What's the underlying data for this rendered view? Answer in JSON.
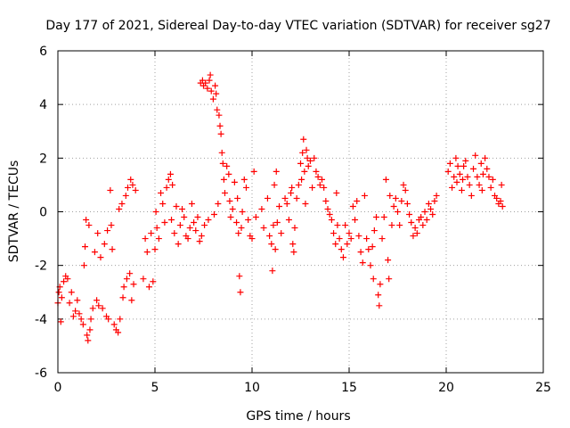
{
  "chart_data": {
    "type": "scatter",
    "title": "Day 177 of 2021, Sidereal Day-to-day VTEC variation (SDTVAR) for receiver sg27",
    "xlabel": "GPS time / hours",
    "ylabel": "SDTVAR / TECUs",
    "xlim": [
      0,
      25
    ],
    "ylim": [
      -6,
      6
    ],
    "xticks": [
      0,
      5,
      10,
      15,
      20,
      25
    ],
    "yticks": [
      -6,
      -4,
      -2,
      0,
      2,
      4,
      6
    ],
    "grid": true,
    "marker": "plus",
    "color": "#ff0000",
    "series": [
      {
        "name": "SDTVAR",
        "points": [
          [
            0.0,
            -3.4
          ],
          [
            0.05,
            -3.0
          ],
          [
            0.1,
            -2.8
          ],
          [
            0.15,
            -4.1
          ],
          [
            0.2,
            -3.2
          ],
          [
            0.3,
            -2.6
          ],
          [
            0.4,
            -2.4
          ],
          [
            0.5,
            -2.5
          ],
          [
            0.6,
            -3.4
          ],
          [
            0.7,
            -3.0
          ],
          [
            0.8,
            -3.9
          ],
          [
            0.9,
            -3.7
          ],
          [
            1.0,
            -3.3
          ],
          [
            1.1,
            -3.8
          ],
          [
            1.2,
            -4.0
          ],
          [
            1.3,
            -4.2
          ],
          [
            1.35,
            -2.0
          ],
          [
            1.4,
            -1.3
          ],
          [
            1.45,
            -0.3
          ],
          [
            1.5,
            -4.6
          ],
          [
            1.55,
            -4.8
          ],
          [
            1.6,
            -0.5
          ],
          [
            1.65,
            -4.4
          ],
          [
            1.7,
            -4.0
          ],
          [
            1.8,
            -3.6
          ],
          [
            1.9,
            -1.5
          ],
          [
            2.0,
            -3.3
          ],
          [
            2.05,
            -0.8
          ],
          [
            2.1,
            -3.5
          ],
          [
            2.2,
            -1.7
          ],
          [
            2.3,
            -3.6
          ],
          [
            2.4,
            -1.2
          ],
          [
            2.5,
            -3.9
          ],
          [
            2.55,
            -0.7
          ],
          [
            2.6,
            -4.0
          ],
          [
            2.7,
            0.8
          ],
          [
            2.75,
            -0.5
          ],
          [
            2.8,
            -1.4
          ],
          [
            2.9,
            -4.2
          ],
          [
            3.0,
            -4.4
          ],
          [
            3.1,
            -4.5
          ],
          [
            3.15,
            0.1
          ],
          [
            3.2,
            -4.0
          ],
          [
            3.3,
            0.3
          ],
          [
            3.35,
            -3.2
          ],
          [
            3.4,
            -2.8
          ],
          [
            3.5,
            0.6
          ],
          [
            3.55,
            -2.5
          ],
          [
            3.6,
            0.9
          ],
          [
            3.7,
            -2.3
          ],
          [
            3.75,
            1.2
          ],
          [
            3.8,
            -3.3
          ],
          [
            3.85,
            1.0
          ],
          [
            3.9,
            -2.7
          ],
          [
            4.0,
            0.8
          ],
          [
            4.4,
            -2.5
          ],
          [
            4.5,
            -1.0
          ],
          [
            4.6,
            -1.5
          ],
          [
            4.7,
            -2.8
          ],
          [
            4.8,
            -0.8
          ],
          [
            4.9,
            -2.6
          ],
          [
            5.0,
            -1.4
          ],
          [
            5.05,
            0.0
          ],
          [
            5.1,
            -0.6
          ],
          [
            5.2,
            -1.0
          ],
          [
            5.3,
            0.7
          ],
          [
            5.4,
            0.3
          ],
          [
            5.5,
            -0.4
          ],
          [
            5.6,
            0.9
          ],
          [
            5.7,
            1.2
          ],
          [
            5.8,
            1.4
          ],
          [
            5.85,
            -0.3
          ],
          [
            5.9,
            1.0
          ],
          [
            6.0,
            -0.8
          ],
          [
            6.1,
            0.2
          ],
          [
            6.2,
            -1.2
          ],
          [
            6.3,
            -0.5
          ],
          [
            6.4,
            0.1
          ],
          [
            6.5,
            -0.2
          ],
          [
            6.6,
            -0.9
          ],
          [
            6.7,
            -1.0
          ],
          [
            6.8,
            -0.6
          ],
          [
            6.9,
            0.3
          ],
          [
            7.0,
            -0.4
          ],
          [
            7.1,
            -0.7
          ],
          [
            7.2,
            -0.2
          ],
          [
            7.3,
            -1.1
          ],
          [
            7.35,
            4.8
          ],
          [
            7.4,
            -0.9
          ],
          [
            7.45,
            4.9
          ],
          [
            7.5,
            4.7
          ],
          [
            7.55,
            -0.5
          ],
          [
            7.6,
            4.8
          ],
          [
            7.7,
            4.6
          ],
          [
            7.75,
            -0.3
          ],
          [
            7.8,
            4.9
          ],
          [
            7.85,
            5.1
          ],
          [
            7.9,
            4.5
          ],
          [
            8.0,
            4.2
          ],
          [
            8.05,
            -0.1
          ],
          [
            8.1,
            4.7
          ],
          [
            8.15,
            4.4
          ],
          [
            8.2,
            3.8
          ],
          [
            8.25,
            0.3
          ],
          [
            8.3,
            3.6
          ],
          [
            8.35,
            3.2
          ],
          [
            8.4,
            2.9
          ],
          [
            8.45,
            2.2
          ],
          [
            8.5,
            1.8
          ],
          [
            8.55,
            1.2
          ],
          [
            8.6,
            0.7
          ],
          [
            8.7,
            1.7
          ],
          [
            8.8,
            1.4
          ],
          [
            8.85,
            0.4
          ],
          [
            8.9,
            -0.2
          ],
          [
            9.0,
            0.1
          ],
          [
            9.1,
            1.1
          ],
          [
            9.2,
            -0.4
          ],
          [
            9.25,
            0.5
          ],
          [
            9.3,
            -0.8
          ],
          [
            9.35,
            -2.4
          ],
          [
            9.4,
            -3.0
          ],
          [
            9.45,
            -0.6
          ],
          [
            9.5,
            0.0
          ],
          [
            9.6,
            1.2
          ],
          [
            9.7,
            0.9
          ],
          [
            9.8,
            -0.3
          ],
          [
            9.9,
            -0.9
          ],
          [
            10.0,
            -1.0
          ],
          [
            10.1,
            1.5
          ],
          [
            10.2,
            -0.2
          ],
          [
            10.5,
            0.1
          ],
          [
            10.6,
            -0.6
          ],
          [
            10.8,
            0.5
          ],
          [
            10.9,
            -0.9
          ],
          [
            11.0,
            -1.2
          ],
          [
            11.05,
            -2.2
          ],
          [
            11.1,
            -0.5
          ],
          [
            11.15,
            1.0
          ],
          [
            11.2,
            -1.4
          ],
          [
            11.25,
            1.5
          ],
          [
            11.3,
            -0.4
          ],
          [
            11.4,
            0.2
          ],
          [
            11.5,
            -0.8
          ],
          [
            11.7,
            0.5
          ],
          [
            11.8,
            0.3
          ],
          [
            11.9,
            -0.3
          ],
          [
            12.0,
            0.7
          ],
          [
            12.05,
            0.9
          ],
          [
            12.1,
            -1.2
          ],
          [
            12.15,
            -1.5
          ],
          [
            12.2,
            -0.6
          ],
          [
            12.3,
            0.5
          ],
          [
            12.4,
            1.0
          ],
          [
            12.5,
            1.8
          ],
          [
            12.55,
            1.2
          ],
          [
            12.6,
            2.2
          ],
          [
            12.65,
            2.7
          ],
          [
            12.7,
            1.5
          ],
          [
            12.75,
            0.3
          ],
          [
            12.8,
            2.3
          ],
          [
            12.85,
            2.0
          ],
          [
            12.9,
            1.7
          ],
          [
            13.0,
            1.9
          ],
          [
            13.1,
            0.9
          ],
          [
            13.2,
            2.0
          ],
          [
            13.3,
            1.5
          ],
          [
            13.4,
            1.3
          ],
          [
            13.5,
            1.0
          ],
          [
            13.6,
            1.2
          ],
          [
            13.7,
            0.9
          ],
          [
            13.8,
            0.4
          ],
          [
            13.9,
            0.1
          ],
          [
            14.0,
            -0.1
          ],
          [
            14.1,
            -0.3
          ],
          [
            14.2,
            -0.8
          ],
          [
            14.3,
            -1.2
          ],
          [
            14.35,
            0.7
          ],
          [
            14.4,
            -0.5
          ],
          [
            14.5,
            -1.0
          ],
          [
            14.6,
            -1.4
          ],
          [
            14.7,
            -1.7
          ],
          [
            14.8,
            -0.5
          ],
          [
            14.9,
            -1.2
          ],
          [
            15.0,
            -0.8
          ],
          [
            15.1,
            -1.0
          ],
          [
            15.2,
            0.2
          ],
          [
            15.3,
            -0.3
          ],
          [
            15.4,
            0.4
          ],
          [
            15.5,
            -0.9
          ],
          [
            15.6,
            -1.5
          ],
          [
            15.7,
            -1.9
          ],
          [
            15.8,
            0.6
          ],
          [
            15.9,
            -1.0
          ],
          [
            16.0,
            -1.4
          ],
          [
            16.1,
            -2.0
          ],
          [
            16.2,
            -1.3
          ],
          [
            16.25,
            -2.5
          ],
          [
            16.3,
            -0.7
          ],
          [
            16.4,
            -0.2
          ],
          [
            16.5,
            -3.1
          ],
          [
            16.55,
            -3.5
          ],
          [
            16.6,
            -2.7
          ],
          [
            16.7,
            -1.0
          ],
          [
            16.8,
            -0.2
          ],
          [
            16.9,
            1.2
          ],
          [
            17.0,
            -1.8
          ],
          [
            17.05,
            -2.5
          ],
          [
            17.1,
            0.6
          ],
          [
            17.2,
            -0.5
          ],
          [
            17.3,
            0.2
          ],
          [
            17.4,
            0.5
          ],
          [
            17.5,
            0.0
          ],
          [
            17.6,
            -0.5
          ],
          [
            17.7,
            0.4
          ],
          [
            17.8,
            1.0
          ],
          [
            17.9,
            0.8
          ],
          [
            18.0,
            0.3
          ],
          [
            18.1,
            -0.1
          ],
          [
            18.2,
            -0.4
          ],
          [
            18.3,
            -0.9
          ],
          [
            18.4,
            -0.6
          ],
          [
            18.5,
            -0.8
          ],
          [
            18.6,
            -0.3
          ],
          [
            18.7,
            -0.2
          ],
          [
            18.8,
            -0.5
          ],
          [
            18.9,
            0.0
          ],
          [
            19.0,
            -0.3
          ],
          [
            19.1,
            0.3
          ],
          [
            19.2,
            0.1
          ],
          [
            19.3,
            -0.1
          ],
          [
            19.4,
            0.4
          ],
          [
            19.5,
            0.6
          ],
          [
            20.1,
            1.5
          ],
          [
            20.2,
            1.8
          ],
          [
            20.3,
            0.9
          ],
          [
            20.4,
            1.3
          ],
          [
            20.5,
            2.0
          ],
          [
            20.55,
            1.1
          ],
          [
            20.6,
            1.7
          ],
          [
            20.7,
            1.4
          ],
          [
            20.8,
            0.8
          ],
          [
            20.85,
            1.2
          ],
          [
            20.9,
            1.7
          ],
          [
            21.0,
            1.9
          ],
          [
            21.1,
            1.3
          ],
          [
            21.2,
            1.0
          ],
          [
            21.3,
            0.6
          ],
          [
            21.4,
            1.6
          ],
          [
            21.5,
            2.1
          ],
          [
            21.6,
            1.3
          ],
          [
            21.7,
            1.0
          ],
          [
            21.8,
            1.8
          ],
          [
            21.85,
            0.8
          ],
          [
            21.9,
            1.4
          ],
          [
            22.0,
            2.0
          ],
          [
            22.1,
            1.6
          ],
          [
            22.2,
            1.3
          ],
          [
            22.3,
            0.9
          ],
          [
            22.4,
            1.2
          ],
          [
            22.5,
            0.6
          ],
          [
            22.6,
            0.5
          ],
          [
            22.7,
            0.3
          ],
          [
            22.8,
            0.4
          ],
          [
            22.85,
            1.0
          ],
          [
            22.9,
            0.2
          ]
        ]
      }
    ]
  }
}
